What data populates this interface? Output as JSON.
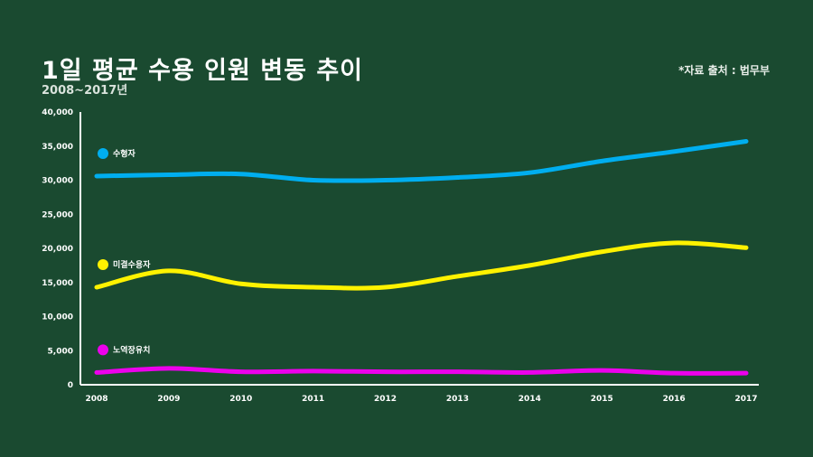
{
  "header": {
    "title": "1일 평균 수용 인원 변동 추이",
    "subtitle": "2008~2017년",
    "source": "*자료 출처 : 법무부"
  },
  "chart_data": {
    "type": "line",
    "title": "1일 평균 수용 인원 변동 추이",
    "subtitle": "2008~2017년",
    "xlabel": "",
    "ylabel": "",
    "x": [
      "2008",
      "2009",
      "2010",
      "2011",
      "2012",
      "2013",
      "2014",
      "2015",
      "2016",
      "2017"
    ],
    "ylim": [
      0,
      40000
    ],
    "yticks": [
      0,
      5000,
      10000,
      15000,
      20000,
      25000,
      30000,
      35000,
      40000
    ],
    "ytick_labels": [
      "0",
      "5,000",
      "10,000",
      "15,000",
      "20,000",
      "25,000",
      "30,000",
      "35,000",
      "40,000"
    ],
    "grid": false,
    "legend": "inline-left",
    "series": [
      {
        "name": "수형자",
        "color": "#00aeef",
        "values": [
          30600,
          30800,
          30900,
          30000,
          30000,
          30400,
          31100,
          32800,
          34200,
          35700
        ]
      },
      {
        "name": "미결수용자",
        "color": "#fff200",
        "values": [
          14300,
          16700,
          14800,
          14300,
          14300,
          15900,
          17500,
          19500,
          20800,
          20100
        ]
      },
      {
        "name": "노역장유치",
        "color": "#ec00ec",
        "values": [
          1800,
          2400,
          1900,
          2000,
          1900,
          1900,
          1800,
          2100,
          1700,
          1700
        ]
      }
    ]
  }
}
